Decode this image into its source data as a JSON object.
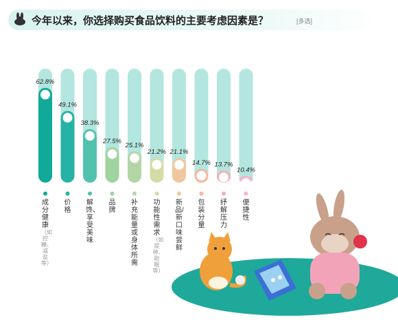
{
  "title": {
    "text": "今年以来，你选择购买食品饮料的主要考虑因素是？",
    "tag": "[多选]"
  },
  "colors": {
    "track": "#b3e6de",
    "dots": [
      "#10a99a",
      "#26b2a4",
      "#52c2ad",
      "#9fd3a0",
      "#b2d6a6",
      "#d6dba6",
      "#f0c79f",
      "#f6b79e",
      "#f4aeb4",
      "#f1b5cf"
    ]
  },
  "chart_data": {
    "type": "bar",
    "categories": [
      {
        "main": "成分健康",
        "sub": "（如控糖、减盐等）"
      },
      {
        "main": "价格",
        "sub": ""
      },
      {
        "main": "解馋、享受美味",
        "sub": ""
      },
      {
        "main": "品牌",
        "sub": ""
      },
      {
        "main": "补充能量或身体所需",
        "sub": ""
      },
      {
        "main": "功能性需求",
        "sub": "（如提神、助眠等）"
      },
      {
        "main": "新品/新口味尝鲜",
        "sub": ""
      },
      {
        "main": "包装分量",
        "sub": ""
      },
      {
        "main": "纾解压力",
        "sub": ""
      },
      {
        "main": "便捷性",
        "sub": ""
      }
    ],
    "values": [
      62.8,
      49.1,
      38.3,
      27.5,
      25.1,
      21.2,
      21.1,
      14.7,
      13.7,
      10.4
    ],
    "value_labels": [
      "62.8%",
      "49.1%",
      "38.3%",
      "27.5%",
      "25.1%",
      "21.2%",
      "21.1%",
      "14.7%",
      "13.7%",
      "10.4%"
    ],
    "ylim": [
      0,
      75
    ]
  }
}
